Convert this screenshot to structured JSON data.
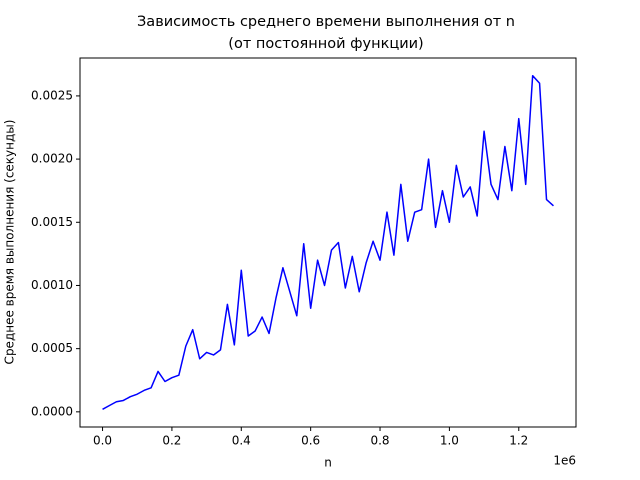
{
  "chart_data": {
    "type": "line",
    "title": [
      "Зависимость среднего времени выполнения от n",
      "(от постоянной функции)"
    ],
    "x_label": "n",
    "y_label": "Среднее время выполнения (секунды)",
    "x_offset_label": "1e6",
    "x": [
      0,
      20000,
      40000,
      60000,
      80000,
      100000,
      120000,
      140000,
      160000,
      180000,
      200000,
      220000,
      240000,
      260000,
      280000,
      300000,
      320000,
      340000,
      360000,
      380000,
      400000,
      420000,
      440000,
      460000,
      480000,
      500000,
      520000,
      540000,
      560000,
      580000,
      600000,
      620000,
      640000,
      660000,
      680000,
      700000,
      720000,
      740000,
      760000,
      780000,
      800000,
      820000,
      840000,
      860000,
      880000,
      900000,
      920000,
      940000,
      960000,
      980000,
      1000000,
      1020000,
      1040000,
      1060000,
      1080000,
      1100000,
      1120000,
      1140000,
      1160000,
      1180000,
      1200000,
      1220000,
      1240000,
      1260000,
      1280000,
      1300000
    ],
    "series": [
      {
        "name": "n",
        "color": "#0000ff",
        "values": [
          2e-05,
          5e-05,
          8e-05,
          9e-05,
          0.00012,
          0.00014,
          0.00017,
          0.00019,
          0.00032,
          0.00024,
          0.00027,
          0.00029,
          0.00052,
          0.00065,
          0.00042,
          0.00047,
          0.00045,
          0.00049,
          0.00085,
          0.00053,
          0.00112,
          0.0006,
          0.00064,
          0.00075,
          0.00062,
          0.0009,
          0.00114,
          0.00095,
          0.00076,
          0.00133,
          0.00082,
          0.0012,
          0.001,
          0.00128,
          0.00134,
          0.00098,
          0.00123,
          0.00095,
          0.00118,
          0.00135,
          0.0012,
          0.00158,
          0.00124,
          0.0018,
          0.00135,
          0.00158,
          0.0016,
          0.002,
          0.00146,
          0.00175,
          0.0015,
          0.00195,
          0.0017,
          0.00178,
          0.00155,
          0.00222,
          0.0018,
          0.00168,
          0.0021,
          0.00175,
          0.00232,
          0.0018,
          0.00266,
          0.0026,
          0.00168,
          0.00163
        ]
      }
    ],
    "xlim": [
      -65000,
      1365000
    ],
    "ylim": [
      -0.00012,
      0.0028
    ],
    "xticks": [
      {
        "value": 0,
        "label": "0.0"
      },
      {
        "value": 200000,
        "label": "0.2"
      },
      {
        "value": 400000,
        "label": "0.4"
      },
      {
        "value": 600000,
        "label": "0.6"
      },
      {
        "value": 800000,
        "label": "0.8"
      },
      {
        "value": 1000000,
        "label": "1.0"
      },
      {
        "value": 1200000,
        "label": "1.2"
      }
    ],
    "yticks": [
      {
        "value": 0,
        "label": "0.0000"
      },
      {
        "value": 0.0005,
        "label": "0.0005"
      },
      {
        "value": 0.001,
        "label": "0.0010"
      },
      {
        "value": 0.0015,
        "label": "0.0015"
      },
      {
        "value": 0.002,
        "label": "0.0020"
      },
      {
        "value": 0.0025,
        "label": "0.0025"
      }
    ],
    "grid": false
  }
}
